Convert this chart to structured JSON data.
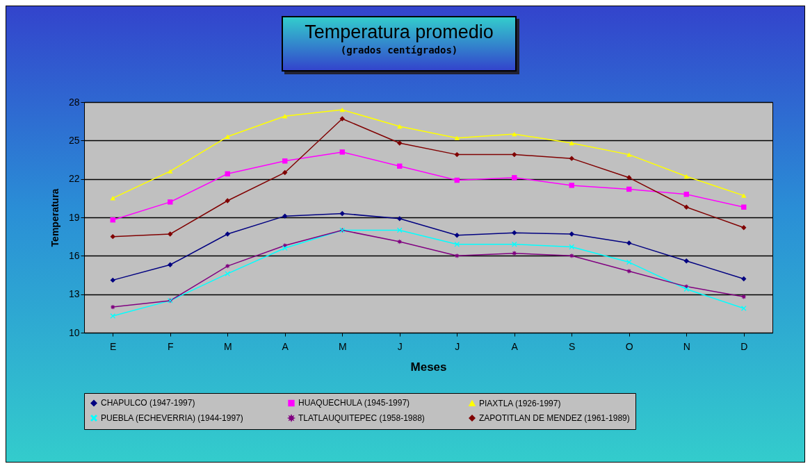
{
  "chart_data": {
    "type": "line",
    "title": "Temperatura promedio",
    "subtitle": "(grados centígrados)",
    "xlabel": "Meses",
    "ylabel": "Temperatura",
    "categories": [
      "E",
      "F",
      "M",
      "A",
      "M",
      "J",
      "J",
      "A",
      "S",
      "O",
      "N",
      "D"
    ],
    "ylim": [
      10,
      28
    ],
    "yticks": [
      10,
      13,
      16,
      19,
      22,
      25,
      28
    ],
    "grid": "y",
    "legend": "bottom",
    "series": [
      {
        "name": "CHAPULCO (1947-1997)",
        "color": "#000080",
        "marker": "diamond",
        "values": [
          14.1,
          15.3,
          17.7,
          19.1,
          19.3,
          18.9,
          17.6,
          17.8,
          17.7,
          17.0,
          15.6,
          14.2
        ]
      },
      {
        "name": "HUAQUECHULA (1945-1997)",
        "color": "#ff00ff",
        "marker": "square",
        "values": [
          18.8,
          20.2,
          22.4,
          23.4,
          24.1,
          23.0,
          21.9,
          22.1,
          21.5,
          21.2,
          20.8,
          19.8
        ]
      },
      {
        "name": "PIAXTLA (1926-1997)",
        "color": "#ffff00",
        "marker": "triangle",
        "values": [
          20.5,
          22.6,
          25.3,
          26.9,
          27.4,
          26.1,
          25.2,
          25.5,
          24.8,
          23.9,
          22.2,
          20.7
        ]
      },
      {
        "name": "PUEBLA (ECHEVERRIA) (1944-1997)",
        "color": "#00ffff",
        "marker": "cross",
        "values": [
          11.3,
          12.5,
          14.6,
          16.6,
          18.0,
          18.0,
          16.9,
          16.9,
          16.7,
          15.5,
          13.4,
          11.9
        ]
      },
      {
        "name": "TLATLAUQUITEPEC (1958-1988)",
        "color": "#800080",
        "marker": "star",
        "values": [
          12.0,
          12.5,
          15.2,
          16.8,
          18.0,
          17.1,
          16.0,
          16.2,
          16.0,
          14.8,
          13.6,
          12.8
        ]
      },
      {
        "name": "ZAPOTITLAN DE MENDEZ (1961-1989)",
        "color": "#800000",
        "marker": "diamond",
        "values": [
          17.5,
          17.7,
          20.3,
          22.5,
          26.7,
          24.8,
          23.9,
          23.9,
          23.6,
          22.1,
          19.8,
          18.2
        ]
      }
    ]
  }
}
